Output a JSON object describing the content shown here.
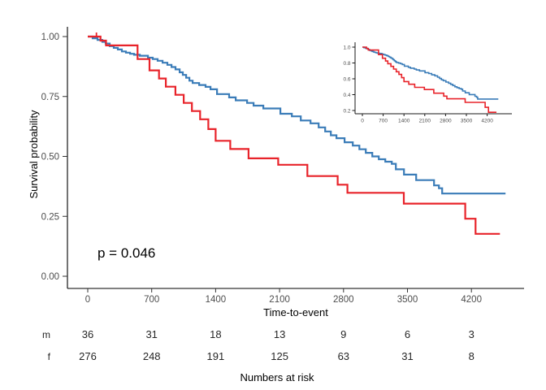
{
  "chart_data": {
    "type": "line",
    "subtype": "kaplan-meier-step-curves",
    "title": "",
    "xlabel": "Time-to-event",
    "ylabel": "Survival probability",
    "p_value_label": "p = 0.046",
    "grid": false,
    "legend": "none",
    "xlim": [
      0,
      4700
    ],
    "ylim": [
      0.0,
      1.0
    ],
    "x_ticks": [
      0,
      700,
      1400,
      2100,
      2800,
      3500,
      4200
    ],
    "y_ticks": [
      "1.00",
      "0.75",
      "0.50",
      "0.25",
      "0.00"
    ],
    "y_tick_values": [
      1.0,
      0.75,
      0.5,
      0.25,
      0.0
    ],
    "series": [
      {
        "name": "m",
        "color": "#e8232a",
        "censor_ticks": [
          95
        ],
        "end_t": 4512,
        "points": [
          [
            0,
            1.0
          ],
          [
            140,
            0.983
          ],
          [
            200,
            0.963
          ],
          [
            545,
            0.906
          ],
          [
            676,
            0.859
          ],
          [
            780,
            0.825
          ],
          [
            855,
            0.791
          ],
          [
            960,
            0.757
          ],
          [
            1050,
            0.723
          ],
          [
            1140,
            0.689
          ],
          [
            1230,
            0.655
          ],
          [
            1320,
            0.614
          ],
          [
            1400,
            0.565
          ],
          [
            1560,
            0.531
          ],
          [
            1760,
            0.492
          ],
          [
            2085,
            0.465
          ],
          [
            2404,
            0.418
          ],
          [
            2736,
            0.382
          ],
          [
            2843,
            0.348
          ],
          [
            3460,
            0.303
          ],
          [
            4132,
            0.24
          ],
          [
            4245,
            0.177
          ]
        ]
      },
      {
        "name": "f",
        "color": "#3a7cb8",
        "censor_ticks": [],
        "end_t": 4574,
        "points": [
          [
            0,
            1.0
          ],
          [
            53,
            0.993
          ],
          [
            107,
            0.986
          ],
          [
            160,
            0.978
          ],
          [
            196,
            0.971
          ],
          [
            240,
            0.96
          ],
          [
            285,
            0.953
          ],
          [
            329,
            0.946
          ],
          [
            374,
            0.938
          ],
          [
            418,
            0.933
          ],
          [
            463,
            0.928
          ],
          [
            507,
            0.924
          ],
          [
            570,
            0.92
          ],
          [
            659,
            0.912
          ],
          [
            712,
            0.906
          ],
          [
            765,
            0.899
          ],
          [
            819,
            0.891
          ],
          [
            872,
            0.882
          ],
          [
            917,
            0.873
          ],
          [
            961,
            0.863
          ],
          [
            1006,
            0.851
          ],
          [
            1041,
            0.84
          ],
          [
            1077,
            0.828
          ],
          [
            1113,
            0.816
          ],
          [
            1148,
            0.806
          ],
          [
            1219,
            0.798
          ],
          [
            1290,
            0.79
          ],
          [
            1344,
            0.78
          ],
          [
            1415,
            0.76
          ],
          [
            1548,
            0.746
          ],
          [
            1620,
            0.734
          ],
          [
            1744,
            0.723
          ],
          [
            1815,
            0.712
          ],
          [
            1922,
            0.7
          ],
          [
            2109,
            0.678
          ],
          [
            2234,
            0.667
          ],
          [
            2332,
            0.65
          ],
          [
            2439,
            0.638
          ],
          [
            2528,
            0.621
          ],
          [
            2599,
            0.604
          ],
          [
            2661,
            0.588
          ],
          [
            2723,
            0.576
          ],
          [
            2812,
            0.559
          ],
          [
            2901,
            0.545
          ],
          [
            2973,
            0.53
          ],
          [
            3044,
            0.515
          ],
          [
            3115,
            0.5
          ],
          [
            3186,
            0.488
          ],
          [
            3257,
            0.478
          ],
          [
            3328,
            0.469
          ],
          [
            3373,
            0.446
          ],
          [
            3462,
            0.424
          ],
          [
            3595,
            0.401
          ],
          [
            3791,
            0.379
          ],
          [
            3844,
            0.367
          ],
          [
            3880,
            0.345
          ]
        ]
      }
    ],
    "inset": {
      "ylim": [
        0.15,
        1.0
      ],
      "y_ticks": [
        "1.0",
        "0.8",
        "0.6",
        "0.4",
        "0.2"
      ],
      "y_tick_values": [
        1.0,
        0.8,
        0.6,
        0.4,
        0.2
      ],
      "x_ticks": [
        0,
        700,
        1400,
        2100,
        2800,
        3500,
        4200
      ]
    },
    "risk_table": {
      "caption": "Numbers at risk",
      "time_points": [
        0,
        700,
        1400,
        2100,
        2800,
        3500,
        4200
      ],
      "rows": [
        {
          "label": "m",
          "values": [
            36,
            31,
            18,
            13,
            9,
            6,
            3
          ]
        },
        {
          "label": "f",
          "values": [
            276,
            248,
            191,
            125,
            63,
            31,
            8
          ]
        }
      ]
    }
  }
}
